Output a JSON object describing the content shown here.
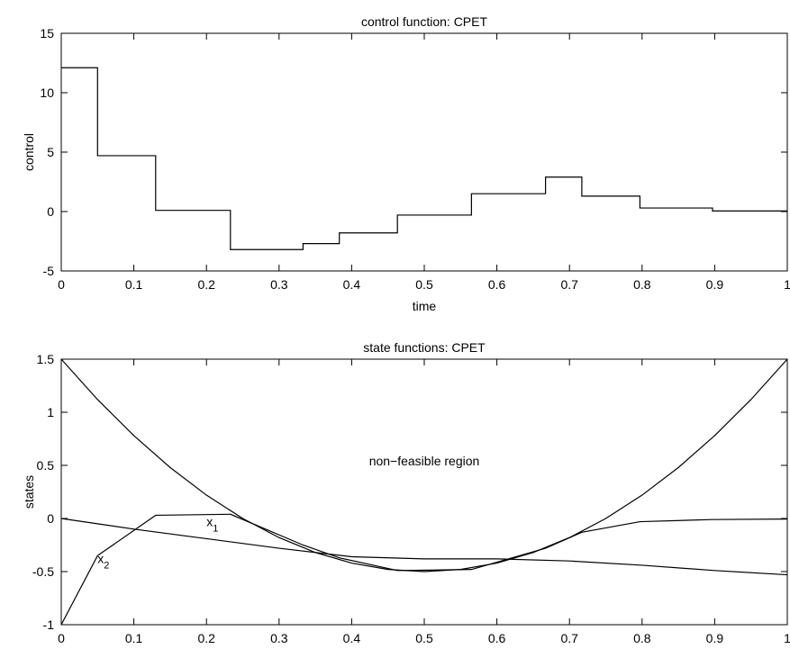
{
  "chart_data": [
    {
      "type": "step",
      "title": "control function: CPET",
      "xlabel": "time",
      "ylabel": "control",
      "series": [
        {
          "color": "#000000",
          "x": [
            0,
            0.05,
            0.13,
            0.233,
            0.333,
            0.383,
            0.463,
            0.565,
            0.667,
            0.717,
            0.797,
            0.897
          ],
          "values": [
            12.1,
            4.7,
            0.1,
            -3.2,
            -2.7,
            -1.8,
            -0.3,
            1.5,
            2.9,
            1.3,
            0.3,
            0.05
          ]
        }
      ],
      "xlim": [
        0,
        1
      ],
      "ylim": [
        -5,
        15
      ],
      "xticks": [
        0,
        0.1,
        0.2,
        0.3,
        0.4,
        0.5,
        0.6,
        0.7,
        0.8,
        0.9,
        1
      ],
      "yticks": [
        -5,
        0,
        5,
        10,
        15
      ]
    },
    {
      "type": "line",
      "title": "state functions: CPET",
      "xlabel": "time",
      "ylabel": "states",
      "annotations": [
        {
          "text": "non−feasible region"
        },
        {
          "text": "x",
          "subscript": "1"
        },
        {
          "text": "x",
          "subscript": "2"
        }
      ],
      "series": [
        {
          "color": "#000000",
          "x": [
            0,
            0.05,
            0.1,
            0.15,
            0.2,
            0.25,
            0.3,
            0.35,
            0.4,
            0.45,
            0.5,
            0.55,
            0.6,
            0.65,
            0.7,
            0.75,
            0.8,
            0.85,
            0.9,
            0.95,
            1
          ],
          "values": [
            1.5,
            1.12,
            0.78,
            0.48,
            0.22,
            0.0,
            -0.18,
            -0.32,
            -0.42,
            -0.48,
            -0.5,
            -0.48,
            -0.42,
            -0.32,
            -0.18,
            0.0,
            0.22,
            0.48,
            0.78,
            1.12,
            1.5
          ]
        },
        {
          "color": "#000000",
          "x": [
            0,
            0.1,
            0.2,
            0.3,
            0.4,
            0.5,
            0.6,
            0.7,
            0.8,
            0.9,
            1
          ],
          "values": [
            0,
            -0.1,
            -0.19,
            -0.28,
            -0.36,
            -0.38,
            -0.38,
            -0.4,
            -0.44,
            -0.49,
            -0.53
          ]
        },
        {
          "color": "#000000",
          "x": [
            0,
            0.05,
            0.13,
            0.233,
            0.333,
            0.383,
            0.463,
            0.565,
            0.667,
            0.717,
            0.797,
            0.897,
            1
          ],
          "values": [
            -1,
            -0.35,
            0.03,
            0.04,
            -0.25,
            -0.37,
            -0.49,
            -0.48,
            -0.28,
            -0.13,
            -0.03,
            -0.01,
            -0.005
          ]
        }
      ],
      "xlim": [
        0,
        1
      ],
      "ylim": [
        -1,
        1.5
      ],
      "xticks": [
        0,
        0.1,
        0.2,
        0.3,
        0.4,
        0.5,
        0.6,
        0.7,
        0.8,
        0.9,
        1
      ],
      "yticks": [
        -1,
        -0.5,
        0,
        0.5,
        1,
        1.5
      ]
    }
  ]
}
